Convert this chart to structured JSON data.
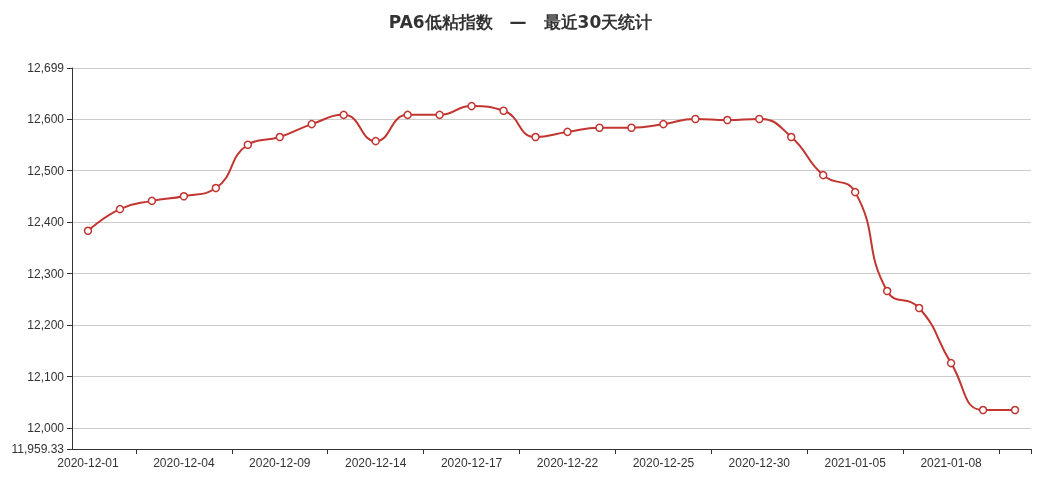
{
  "chart_data": {
    "type": "line",
    "title": "PA6低粘指数　—　最近30天统计",
    "categories": [
      "2020-12-01",
      null,
      null,
      "2020-12-04",
      null,
      null,
      "2020-12-09",
      null,
      null,
      "2020-12-14",
      null,
      null,
      "2020-12-17",
      null,
      null,
      "2020-12-22",
      null,
      null,
      "2020-12-25",
      null,
      null,
      "2020-12-30",
      null,
      null,
      "2021-01-05",
      null,
      null,
      "2021-01-08",
      null,
      null
    ],
    "series": [
      {
        "color": "#c23531",
        "values": [
          12383,
          12425,
          12441,
          12450,
          12466,
          12550,
          12565,
          12590,
          12608,
          12557,
          12608,
          12608,
          12625,
          12616,
          12565,
          12575,
          12583,
          12583,
          12590,
          12600,
          12598,
          12600,
          12565,
          12491,
          12458,
          12266,
          12233,
          12126,
          12035,
          12035
        ]
      }
    ],
    "ylim": [
      11959.33,
      12699
    ],
    "yticks": [
      {
        "value": 11959.33,
        "label": "11,959.33"
      },
      {
        "value": 12000,
        "label": "12,000"
      },
      {
        "value": 12100,
        "label": "12,100"
      },
      {
        "value": 12200,
        "label": "12,200"
      },
      {
        "value": 12300,
        "label": "12,300"
      },
      {
        "value": 12400,
        "label": "12,400"
      },
      {
        "value": 12500,
        "label": "12,500"
      },
      {
        "value": 12600,
        "label": "12,600"
      },
      {
        "value": 12699,
        "label": "12,699"
      }
    ],
    "grid": "y",
    "marker": "circle",
    "line_style": "solid"
  }
}
